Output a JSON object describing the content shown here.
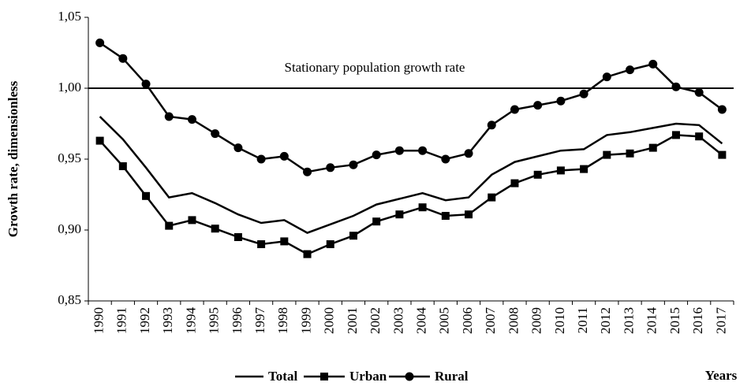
{
  "chart_data": {
    "type": "line",
    "y_label": "Growth rate, dimensionless",
    "x_label": "Years",
    "categories": [
      "1990",
      "1991",
      "1992",
      "1993",
      "1994",
      "1995",
      "1996",
      "1997",
      "1998",
      "1999",
      "2000",
      "2001",
      "2002",
      "2003",
      "2004",
      "2005",
      "2006",
      "2007",
      "2008",
      "2009",
      "2010",
      "2011",
      "2012",
      "2013",
      "2014",
      "2015",
      "2016",
      "2017"
    ],
    "series": [
      {
        "name": "Total",
        "color": "#000000",
        "marker": "none",
        "values": [
          0.98,
          0.964,
          0.944,
          0.923,
          0.926,
          0.919,
          0.911,
          0.905,
          0.907,
          0.898,
          0.904,
          0.91,
          0.918,
          0.922,
          0.926,
          0.921,
          0.923,
          0.939,
          0.948,
          0.952,
          0.956,
          0.957,
          0.967,
          0.969,
          0.972,
          0.975,
          0.974,
          0.961
        ]
      },
      {
        "name": "Urban",
        "color": "#000000",
        "marker": "square",
        "values": [
          0.963,
          0.945,
          0.924,
          0.903,
          0.907,
          0.901,
          0.895,
          0.89,
          0.892,
          0.883,
          0.89,
          0.896,
          0.906,
          0.911,
          0.916,
          0.91,
          0.911,
          0.923,
          0.933,
          0.939,
          0.942,
          0.943,
          0.953,
          0.954,
          0.958,
          0.967,
          0.966,
          0.953
        ]
      },
      {
        "name": "Rural",
        "color": "#000000",
        "marker": "circle",
        "values": [
          1.032,
          1.021,
          1.003,
          0.98,
          0.978,
          0.968,
          0.958,
          0.95,
          0.952,
          0.941,
          0.944,
          0.946,
          0.953,
          0.956,
          0.956,
          0.95,
          0.954,
          0.974,
          0.985,
          0.988,
          0.991,
          0.996,
          1.008,
          1.013,
          1.017,
          1.001,
          0.997,
          0.985
        ]
      }
    ],
    "reference_line": {
      "value": 1.0,
      "label": "Stationary population growth rate"
    },
    "ylim": [
      0.85,
      1.05
    ],
    "yticks": [
      {
        "value": 0.85,
        "label": "0,85"
      },
      {
        "value": 0.9,
        "label": "0,90"
      },
      {
        "value": 0.95,
        "label": "0,95"
      },
      {
        "value": 1.0,
        "label": "1,00"
      },
      {
        "value": 1.05,
        "label": "1,05"
      }
    ],
    "grid": false,
    "legend": "bottom"
  }
}
